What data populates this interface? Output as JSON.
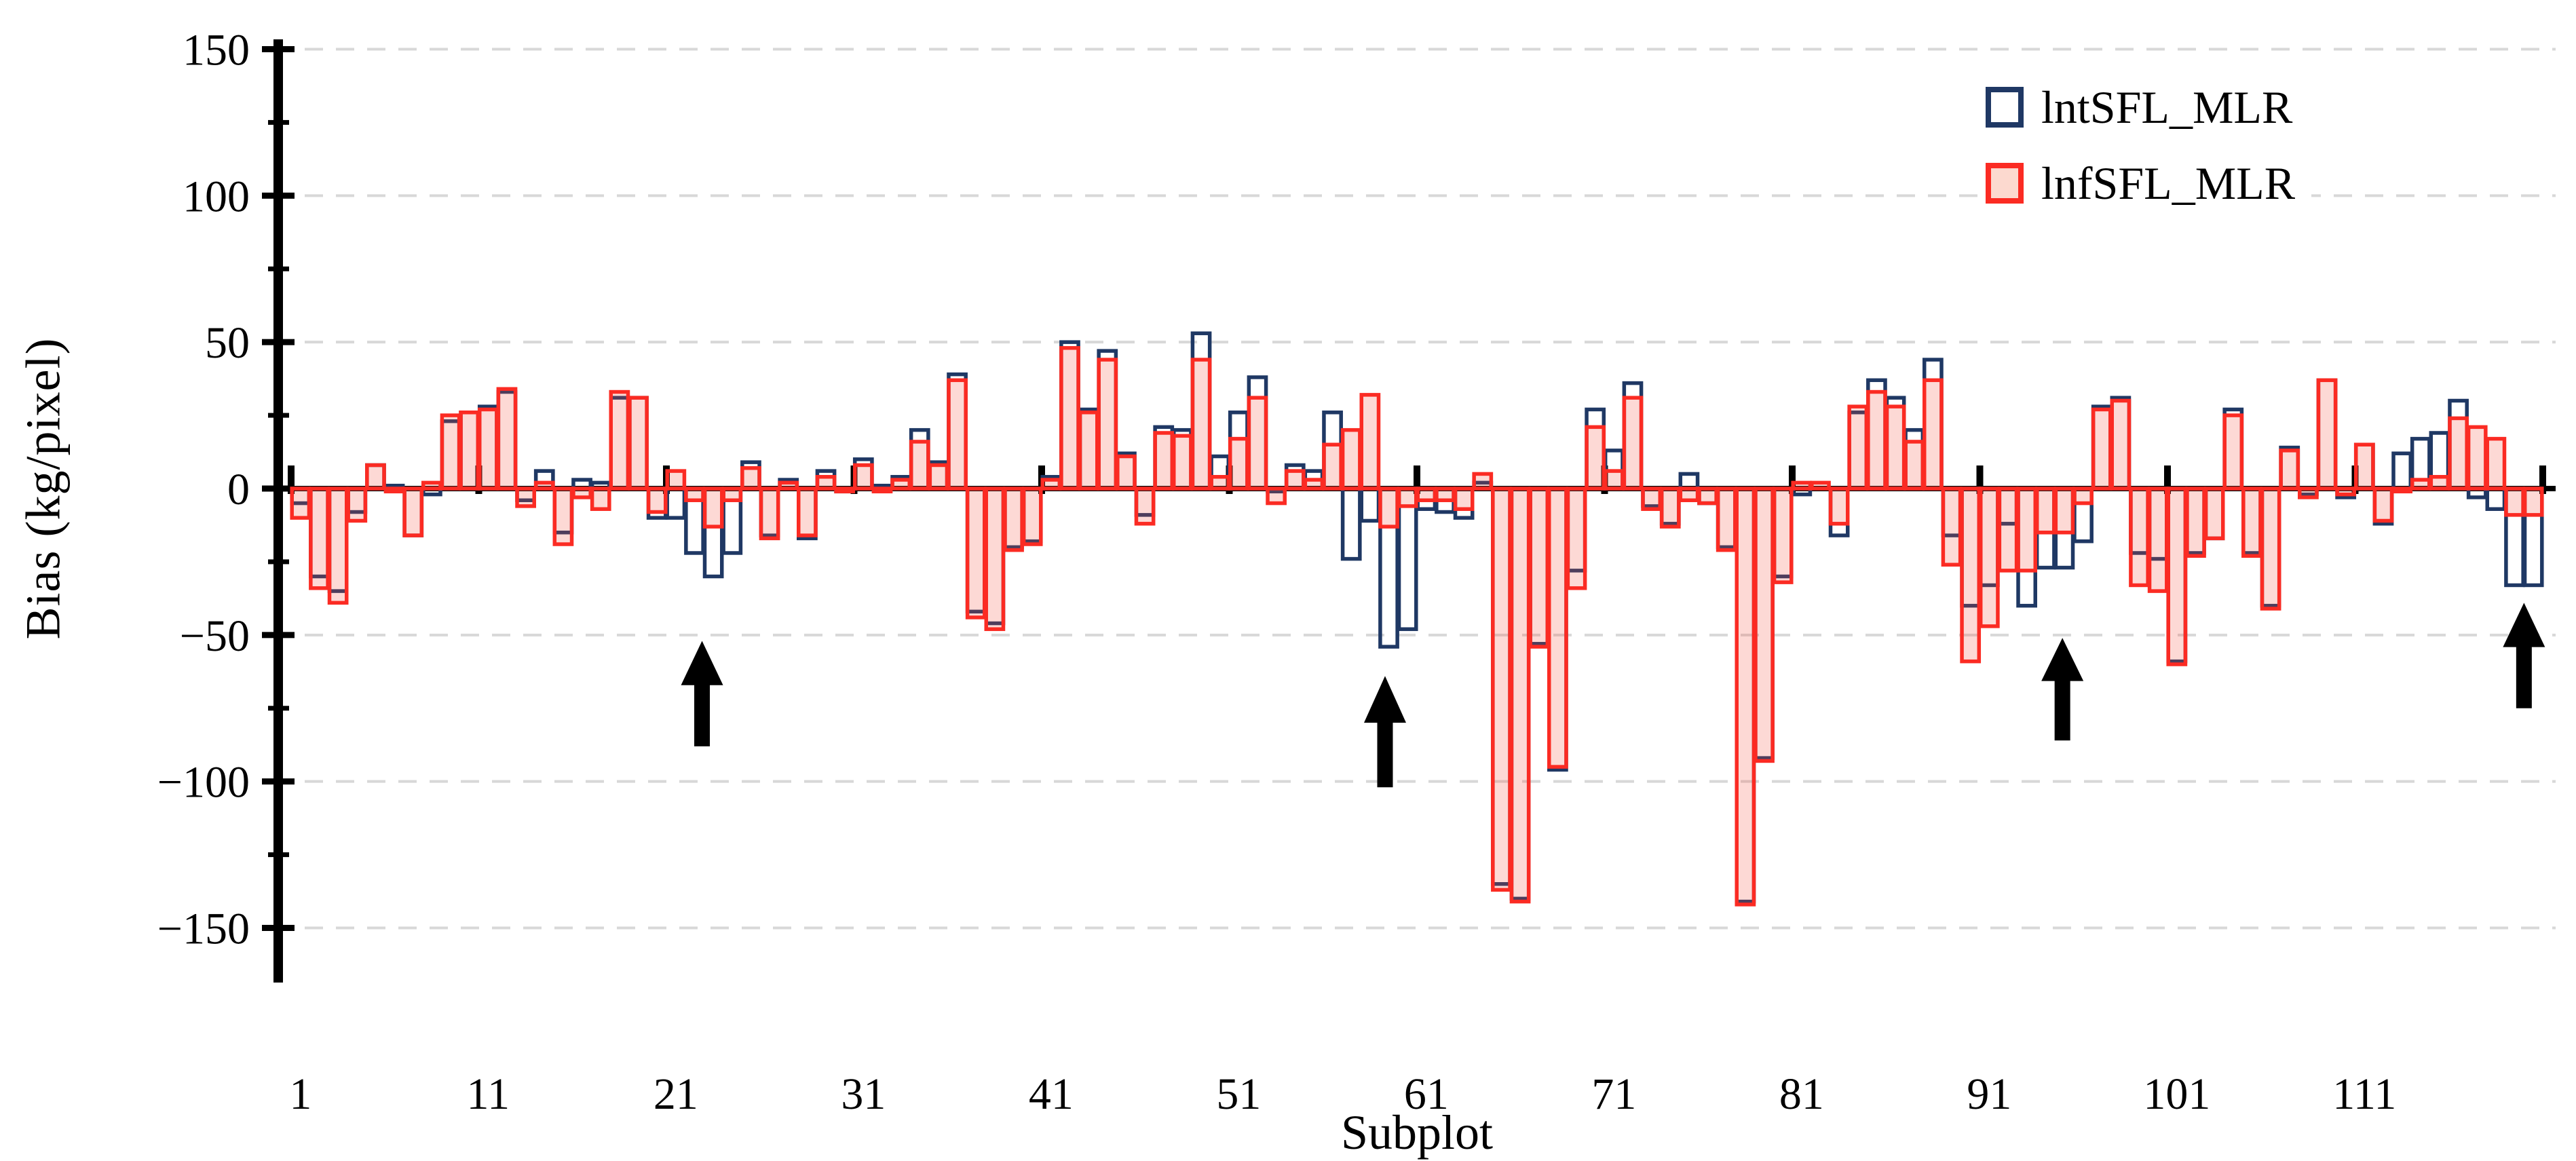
{
  "chart_data": {
    "type": "bar",
    "title": "",
    "xlabel": "Subplot",
    "ylabel": "Bias (kg/pixel)",
    "ylim": [
      -150,
      150
    ],
    "grid": "dashed-horizontal",
    "legend_position": "top-right",
    "x_start": 1,
    "x_count": 120,
    "yticks": [
      150,
      100,
      50,
      0,
      -50,
      -100,
      -150
    ],
    "ytick_labels": [
      "150",
      "100",
      "50",
      "0",
      "-50",
      "-100",
      "-150"
    ],
    "y_minor_tick_interval": 25,
    "xtick_positions": [
      1,
      11,
      21,
      31,
      41,
      51,
      61,
      71,
      81,
      91,
      101,
      111
    ],
    "xtick_labels": [
      "1",
      "11",
      "21",
      "31",
      "41",
      "51",
      "61",
      "71",
      "81",
      "91",
      "101",
      "111"
    ],
    "series": [
      {
        "name": "lntSFL_MLR",
        "style": "outline",
        "color": "#1f3864",
        "fill": "none",
        "values": [
          -5,
          -30,
          -35,
          -8,
          8,
          1,
          -16,
          -2,
          23,
          26,
          28,
          33,
          -4,
          6,
          -15,
          3,
          2,
          31,
          31,
          -10,
          -10,
          -22,
          -30,
          -22,
          9,
          -16,
          3,
          -17,
          6,
          -1,
          10,
          1,
          4,
          20,
          9,
          39,
          -42,
          -46,
          -20,
          -18,
          4,
          50,
          27,
          47,
          12,
          -9,
          21,
          20,
          53,
          11,
          26,
          38,
          -1,
          8,
          6,
          26,
          -24,
          -11,
          -54,
          -48,
          -7,
          -8,
          -10,
          2,
          -135,
          -140,
          -53,
          -96,
          -28,
          27,
          13,
          36,
          -6,
          -12,
          5,
          -5,
          -20,
          -141,
          -92,
          -30,
          -2,
          0,
          -16,
          26,
          37,
          31,
          20,
          44,
          -16,
          -40,
          -33,
          -12,
          -40,
          -27,
          -27,
          -18,
          28,
          31,
          -22,
          -24,
          -59,
          -22,
          -17,
          27,
          -22,
          -40,
          14,
          -2,
          37,
          -3,
          15,
          -12,
          12,
          17,
          19,
          30,
          -3,
          -7,
          -33,
          -33
        ]
      },
      {
        "name": "lnfSFL_MLR",
        "style": "filled",
        "color": "#fb2b23",
        "fill": "rgba(244,84,66,0.22)",
        "values": [
          -10,
          -34,
          -39,
          -11,
          8,
          -1,
          -16,
          2,
          25,
          26,
          27,
          34,
          -6,
          2,
          -19,
          -3,
          -7,
          33,
          31,
          -8,
          6,
          -4,
          -13,
          -4,
          7,
          -17,
          2,
          -16,
          4,
          -1,
          8,
          -1,
          3,
          16,
          8,
          37,
          -44,
          -48,
          -21,
          -19,
          3,
          48,
          26,
          44,
          11,
          -12,
          19,
          18,
          44,
          4,
          17,
          31,
          -5,
          6,
          3,
          15,
          20,
          32,
          -13,
          -6,
          -4,
          -4,
          -7,
          5,
          -137,
          -141,
          -54,
          -95,
          -34,
          21,
          6,
          31,
          -7,
          -13,
          -4,
          -5,
          -21,
          -142,
          -93,
          -32,
          2,
          2,
          -12,
          28,
          33,
          28,
          16,
          37,
          -26,
          -59,
          -47,
          -28,
          -28,
          -15,
          -15,
          -5,
          27,
          30,
          -33,
          -35,
          -60,
          -23,
          -17,
          25,
          -23,
          -41,
          13,
          -3,
          37,
          -2,
          15,
          -11,
          -1,
          3,
          4,
          24,
          21,
          17,
          -9,
          -9
        ]
      }
    ],
    "annotations": {
      "arrows": [
        {
          "subplot": 22.4,
          "tip": -52,
          "base": -88
        },
        {
          "subplot": 58.8,
          "tip": -64,
          "base": -102
        },
        {
          "subplot": 94.9,
          "tip": -51,
          "base": -86
        },
        {
          "subplot": 119.5,
          "tip": -39,
          "base": -75
        }
      ]
    }
  }
}
